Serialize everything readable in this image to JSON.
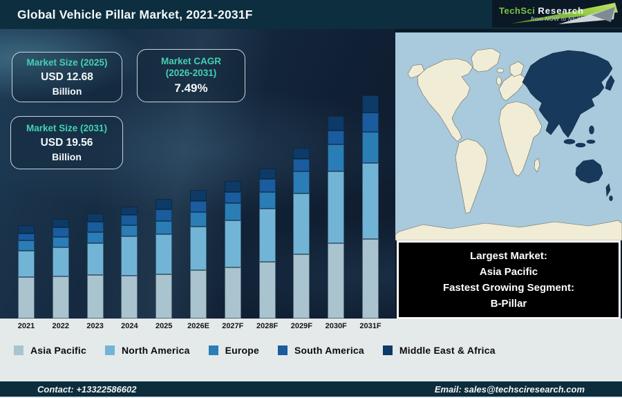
{
  "header": {
    "title": "Global Vehicle Pillar Market, 2021-2031F",
    "brand": {
      "name_part1": "TechSci",
      "name_part2": "Research",
      "tagline": "from NOW to NEXT"
    }
  },
  "stats": {
    "market_size_2025": {
      "label": "Market Size (2025)",
      "value": "USD 12.68",
      "unit": "Billion"
    },
    "market_cagr": {
      "label_line1": "Market CAGR",
      "label_line2": "(2026-2031)",
      "value": "7.49%"
    },
    "market_size_2031": {
      "label": "Market Size (2031)",
      "value": "USD 19.56",
      "unit": "Billion"
    }
  },
  "info_panel": {
    "largest_market_label": "Largest Market:",
    "largest_market_value": "Asia Pacific",
    "fastest_segment_label": "Fastest Growing Segment:",
    "fastest_segment_value": "B-Pillar"
  },
  "chart_data": {
    "type": "bar",
    "stacked": true,
    "title": "Global Vehicle Pillar Market, 2021-2031F",
    "xlabel": "",
    "ylabel": "",
    "y_axis_shown": false,
    "grid": false,
    "legend_position": "bottom",
    "units": "relative bar-segment heights (no numeric y-axis shown in figure)",
    "categories": [
      "2021",
      "2022",
      "2023",
      "2024",
      "2025",
      "2026E",
      "2027F",
      "2028F",
      "2029F",
      "2030F",
      "2031F"
    ],
    "series": [
      {
        "name": "Asia Pacific",
        "color": "#a9c4cf",
        "values": [
          60,
          61,
          63,
          62,
          64,
          70,
          74,
          82,
          93,
          109,
          115
        ]
      },
      {
        "name": "North America",
        "color": "#72b4d6",
        "values": [
          38,
          42,
          46,
          57,
          58,
          63,
          68,
          77,
          88,
          104,
          110
        ]
      },
      {
        "name": "Europe",
        "color": "#2b7db5",
        "values": [
          15,
          15,
          16,
          16,
          19,
          21,
          25,
          24,
          32,
          39,
          45
        ]
      },
      {
        "name": "South America",
        "color": "#1a5c9e",
        "values": [
          10,
          14,
          15,
          15,
          17,
          16,
          16,
          19,
          18,
          20,
          28
        ]
      },
      {
        "name": "Middle East & Africa",
        "color": "#0d3a66",
        "values": [
          12,
          12,
          12,
          12,
          15,
          16,
          16,
          15,
          16,
          21,
          25
        ]
      }
    ],
    "known_values": {
      "market_size_2025_usd_billion": 12.68,
      "market_size_2031_usd_billion": 19.56,
      "cagr_2026_2031_percent": 7.49
    }
  },
  "footer": {
    "contact": "Contact: +13322586602",
    "email": "Email: sales@techsciresearch.com"
  },
  "theme": {
    "header_bg": "#0d2e3f",
    "chart_bg": "#122338",
    "panel_light_bg": "#e4e9ea",
    "footer_bg": "#0d2c3c",
    "accent_teal": "#45d0b4",
    "box_border": "#c9d5db",
    "map_ocean": "#a9c9dc",
    "map_land": "#f0ecd6",
    "map_highlight": "#17395c",
    "logo_green": "#7dc242"
  }
}
